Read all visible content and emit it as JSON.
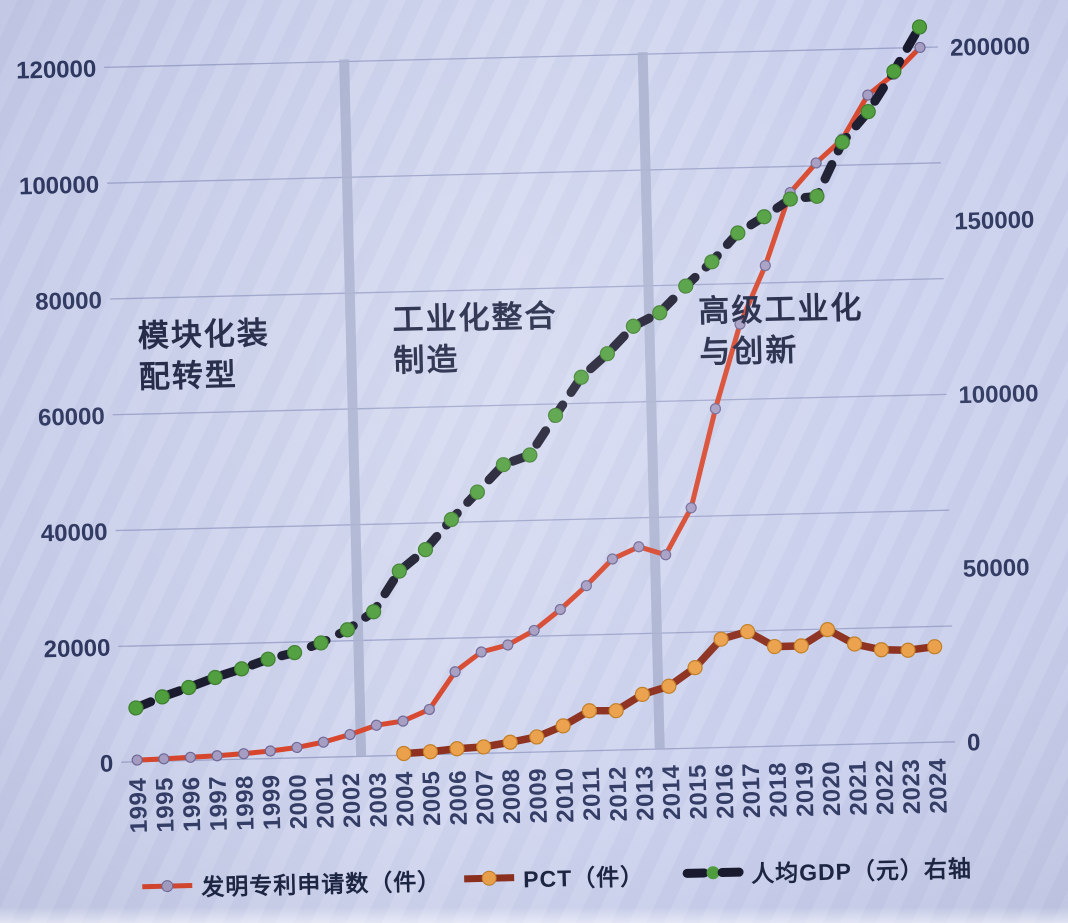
{
  "chart_data": {
    "type": "line",
    "x": [
      1994,
      1995,
      1996,
      1997,
      1998,
      1999,
      2000,
      2001,
      2002,
      2003,
      2004,
      2005,
      2006,
      2007,
      2008,
      2009,
      2010,
      2011,
      2012,
      2013,
      2014,
      2015,
      2016,
      2017,
      2018,
      2019,
      2020,
      2021,
      2022,
      2023,
      2024
    ],
    "left_axis": {
      "min": 0,
      "max": 120000,
      "ticks": [
        0,
        20000,
        40000,
        60000,
        80000,
        100000,
        120000
      ]
    },
    "right_axis": {
      "min": 0,
      "max": 200000,
      "ticks": [
        0,
        50000,
        100000,
        150000,
        200000
      ]
    },
    "grid": "horizontal-left-axis",
    "legend_position": "bottom",
    "background_color": "#cdd3ee",
    "gridline_color": "#8d95bf",
    "divider_color": "#a9b0ce",
    "text_color": "#1d2442",
    "series": [
      {
        "name": "发明专利申请数（件）",
        "axis": "left",
        "line_style": "solid",
        "line_color": "#d7462c",
        "marker_color": "#a59dc2",
        "marker_edge": "#6f6795",
        "values": [
          300,
          400,
          550,
          700,
          950,
          1300,
          1800,
          2600,
          3800,
          5300,
          5900,
          7800,
          14200,
          17500,
          18600,
          21000,
          24500,
          28500,
          33000,
          35000,
          33500,
          41500,
          58500,
          73000,
          83000,
          95500,
          100500,
          104500,
          112000,
          115500,
          120000
        ]
      },
      {
        "name": "PCT（件）",
        "axis": "left",
        "line_style": "solid",
        "line_color": "#8c2e1d",
        "marker_color": "#eba04a",
        "marker_edge": "#c07c22",
        "values": [
          null,
          null,
          null,
          null,
          null,
          null,
          null,
          null,
          null,
          null,
          300,
          500,
          900,
          1100,
          1800,
          2600,
          4400,
          6900,
          6800,
          9500,
          10800,
          13900,
          18700,
          19900,
          17200,
          17200,
          19900,
          17300,
          16200,
          16000,
          16500
        ]
      },
      {
        "name": "人均GDP（元）右轴",
        "axis": "right",
        "line_style": "dashed",
        "line_color": "#1a1a2e",
        "marker_color": "#4f9e3d",
        "marker_edge": "#3c7e2d",
        "values": [
          15500,
          18500,
          21000,
          23700,
          26000,
          28600,
          30300,
          32900,
          36500,
          41500,
          53000,
          59000,
          67500,
          75200,
          82900,
          85500,
          96700,
          107500,
          114100,
          121800,
          125500,
          133000,
          139800,
          147900,
          152400,
          157300,
          157900,
          173300,
          181900,
          193300,
          205900
        ]
      }
    ],
    "phase_dividers_x": [
      2002.4,
      2013.6
    ],
    "annotations": [
      {
        "text": "模块化装\n配转型",
        "x_year": 1994.5
      },
      {
        "text": "工业化整合\n制造",
        "x_year": 2004.0
      },
      {
        "text": "高级工业化\n与创新",
        "x_year": 2015.5
      }
    ]
  }
}
